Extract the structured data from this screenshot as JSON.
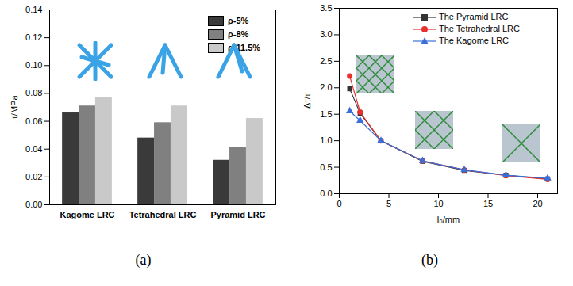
{
  "chart_data": [
    {
      "type": "bar",
      "caption": "(a)",
      "y_label": "τ/MPa",
      "categories": [
        "Kagome LRC",
        "Tetrahedral LRC",
        "Pyramid LRC"
      ],
      "series": [
        {
          "name": "ρ-5%",
          "color": "#3a3a3a",
          "values": [
            0.066,
            0.048,
            0.032
          ]
        },
        {
          "name": "ρ-8%",
          "color": "#808080",
          "values": [
            0.071,
            0.059,
            0.041
          ]
        },
        {
          "name": "ρ-11.5%",
          "color": "#c9c9c9",
          "values": [
            0.077,
            0.071,
            0.062
          ]
        }
      ],
      "ylim": [
        0,
        0.14
      ],
      "yticks": [
        {
          "value": 0,
          "label": "0.00"
        },
        {
          "value": 0.02,
          "label": "0.02"
        },
        {
          "value": 0.04,
          "label": "0.04"
        },
        {
          "value": 0.06,
          "label": "0.06"
        },
        {
          "value": 0.08,
          "label": "0.08"
        },
        {
          "value": 0.1,
          "label": "0.10"
        },
        {
          "value": 0.12,
          "label": "0.12"
        },
        {
          "value": 0.14,
          "label": "0.14"
        }
      ],
      "legend": "upper right"
    },
    {
      "type": "line",
      "caption": "(b)",
      "x_label": "l₀/mm",
      "y_label": "Δτ/τ",
      "x": [
        1.05,
        2.1,
        4.2,
        8.4,
        12.6,
        16.8,
        21
      ],
      "series": [
        {
          "name": "The Pyramid LRC",
          "color": "#333333",
          "marker": "square",
          "values": [
            1.98,
            1.52,
            1.0,
            0.61,
            0.44,
            0.35,
            0.28
          ]
        },
        {
          "name": "The Tetrahedral LRC",
          "color": "#e8312f",
          "marker": "circle",
          "values": [
            2.22,
            1.54,
            1.0,
            0.62,
            0.45,
            0.34,
            0.27
          ]
        },
        {
          "name": "The Kagome LRC",
          "color": "#3a6fd8",
          "marker": "triangle",
          "values": [
            1.56,
            1.38,
            1.0,
            0.62,
            0.45,
            0.35,
            0.29
          ]
        }
      ],
      "xlim": [
        0,
        22
      ],
      "xticks": [
        0,
        5,
        10,
        15,
        20
      ],
      "ylim": [
        0,
        3.5
      ],
      "yticks": [
        {
          "value": 0,
          "label": "0.0"
        },
        {
          "value": 0.5,
          "label": "0.5"
        },
        {
          "value": 1,
          "label": "1.0"
        },
        {
          "value": 1.5,
          "label": "1.5"
        },
        {
          "value": 2,
          "label": "2.0"
        },
        {
          "value": 2.5,
          "label": "2.5"
        },
        {
          "value": 3,
          "label": "3.0"
        },
        {
          "value": 3.5,
          "label": "3.5"
        }
      ],
      "legend": "upper right"
    }
  ]
}
